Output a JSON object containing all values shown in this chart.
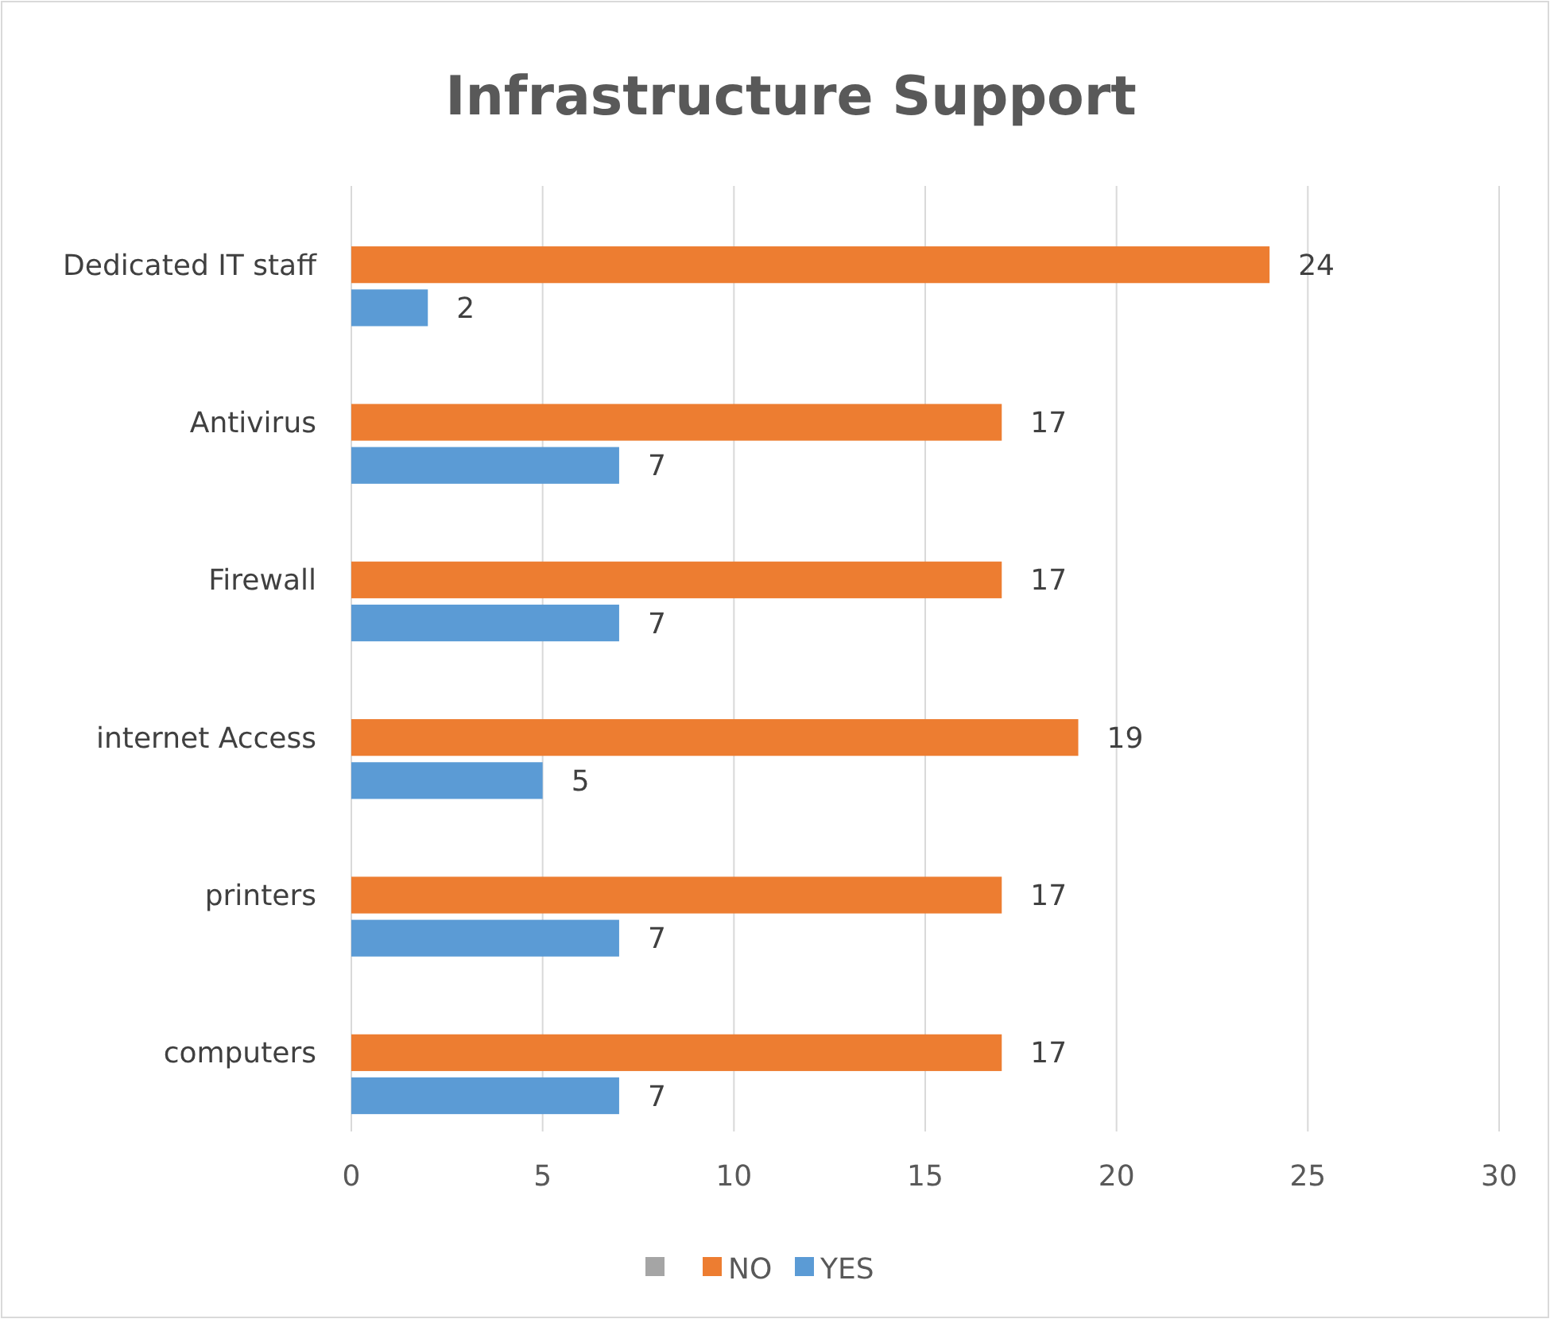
{
  "chart_data": {
    "type": "bar",
    "title": "Infrastructure Support",
    "orientation": "horizontal",
    "categories": [
      "Dedicated IT staff",
      "Antivirus",
      "Firewall",
      "internet Access",
      "printers",
      "computers"
    ],
    "series": [
      {
        "color": "#a5a5a5",
        "values": [
          null,
          null,
          null,
          null,
          null,
          null
        ]
      },
      {
        "name": "NO",
        "color": "#ed7d31",
        "values": [
          24,
          17,
          17,
          19,
          17,
          17
        ]
      },
      {
        "name": "YES",
        "color": "#5b9bd5",
        "values": [
          2,
          7,
          7,
          5,
          7,
          7
        ]
      }
    ],
    "xlim": [
      0,
      30
    ],
    "xticks": [
      0,
      5,
      10,
      15,
      20,
      25,
      30
    ],
    "grid": "x",
    "legend": "bottom",
    "data_labels": true
  }
}
